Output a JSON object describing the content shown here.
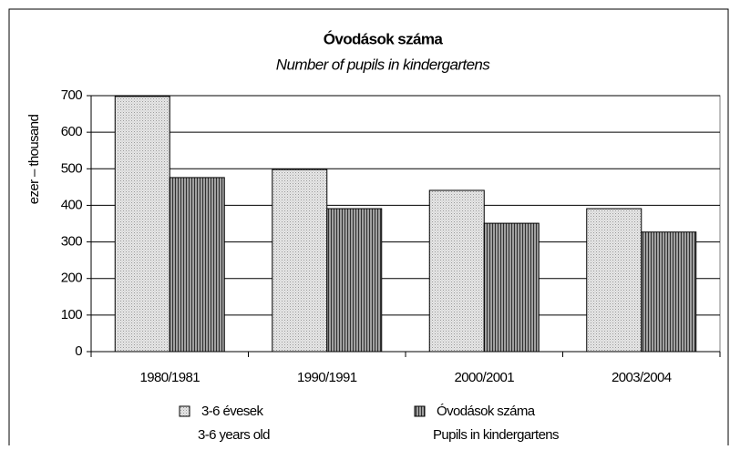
{
  "chart_data": {
    "type": "bar",
    "title": "Óvodások száma",
    "subtitle": "Number of pupils in kindergartens",
    "y_label": "ezer – thousand",
    "categories": [
      "1980/1981",
      "1990/1991",
      "2000/2001",
      "2003/2004"
    ],
    "series": [
      {
        "name": "3-6 évesek",
        "name_en": "3-6 years old",
        "color": "#e6e6e6",
        "values": [
          698,
          498,
          441,
          391
        ]
      },
      {
        "name": "Óvodások száma",
        "name_en": "Pupils in kindergartens",
        "color": "#a0a0a0",
        "values": [
          476,
          391,
          351,
          327
        ]
      }
    ],
    "ylim": [
      0,
      700
    ],
    "yticks": [
      0,
      100,
      200,
      300,
      400,
      500,
      600,
      700
    ],
    "grid": true,
    "legend": "bottom"
  }
}
